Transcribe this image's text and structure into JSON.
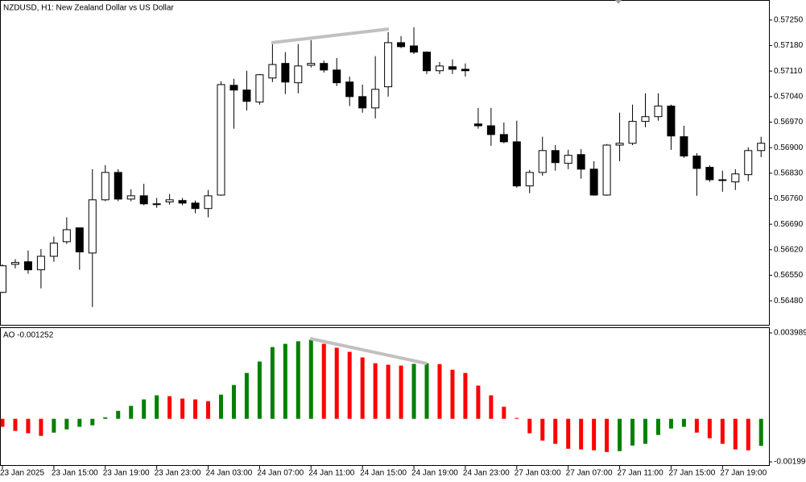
{
  "chart_data": [
    {
      "type": "candlestick",
      "title": "NZDUSD, H1:  New Zealand Dollar vs US Dollar",
      "categories": [
        "23 Jan 2025",
        null,
        null,
        null,
        "23 Jan 15:00",
        null,
        null,
        null,
        "23 Jan 19:00",
        null,
        null,
        null,
        "23 Jan 23:00",
        null,
        null,
        null,
        "24 Jan 03:00",
        null,
        null,
        null,
        "24 Jan 07:00",
        null,
        null,
        null,
        "24 Jan 11:00",
        null,
        null,
        null,
        "24 Jan 15:00",
        null,
        null,
        null,
        "24 Jan 19:00",
        null,
        null,
        null,
        "24 Jan 23:00",
        null,
        null,
        null,
        "27 Jan 03:00",
        null,
        null,
        null,
        "27 Jan 07:00",
        null,
        null,
        null,
        "27 Jan 11:00",
        null,
        null,
        null,
        "27 Jan 15:00",
        null,
        null,
        null,
        "27 Jan 19:00",
        null,
        null,
        null
      ],
      "open": [
        0.56503,
        0.5658,
        0.56587,
        0.56565,
        0.56602,
        0.56642,
        0.5668,
        0.56611,
        0.56757,
        0.56832,
        0.56759,
        0.56768,
        0.56746,
        0.56751,
        0.56755,
        0.56748,
        0.56733,
        0.5677,
        0.57071,
        0.57058,
        0.57025,
        0.57091,
        0.57131,
        0.57078,
        0.57126,
        0.57131,
        0.57113,
        0.5708,
        0.5704,
        0.57009,
        0.57067,
        0.57188,
        0.57179,
        0.57162,
        0.57111,
        0.57122,
        0.57115,
        0.56965,
        0.5696,
        0.56936,
        0.56916,
        0.56795,
        0.56832,
        0.56892,
        0.56857,
        0.56881,
        0.56841,
        0.5677,
        0.56907,
        0.56912,
        0.56972,
        0.56985,
        0.57014,
        0.5693,
        0.56877,
        0.56846,
        0.56812,
        0.56806,
        0.56826,
        0.56892
      ],
      "high": [
        0.5658,
        0.56594,
        0.56618,
        0.56622,
        0.56656,
        0.56709,
        0.5668,
        0.56841,
        0.56852,
        0.56841,
        0.56786,
        0.56801,
        0.56762,
        0.56773,
        0.56762,
        0.56755,
        0.56784,
        0.57082,
        0.57089,
        0.57111,
        0.57102,
        0.57184,
        0.57162,
        0.57184,
        0.57195,
        0.57139,
        0.57146,
        0.57095,
        0.57073,
        0.57151,
        0.57217,
        0.57206,
        0.5723,
        0.57164,
        0.57135,
        0.57142,
        0.57131,
        0.57009,
        0.57009,
        0.56969,
        0.56974,
        0.56839,
        0.5693,
        0.56907,
        0.56894,
        0.56896,
        0.56863,
        0.5691,
        0.56996,
        0.57018,
        0.57049,
        0.57049,
        0.57018,
        0.5696,
        0.56885,
        0.56852,
        0.56837,
        0.56841,
        0.56901,
        0.5693
      ],
      "low": [
        0.56501,
        0.56569,
        0.56554,
        0.56514,
        0.56587,
        0.56636,
        0.56565,
        0.56463,
        0.56753,
        0.56753,
        0.56753,
        0.56742,
        0.56735,
        0.56744,
        0.56742,
        0.5672,
        0.56709,
        0.56768,
        0.56952,
        0.57002,
        0.57018,
        0.5708,
        0.57047,
        0.57049,
        0.5712,
        0.57106,
        0.57069,
        0.57014,
        0.56996,
        0.5698,
        0.5704,
        0.57173,
        0.57157,
        0.57102,
        0.57102,
        0.57102,
        0.57095,
        0.56952,
        0.56905,
        0.56912,
        0.5679,
        0.56775,
        0.56823,
        0.56837,
        0.56841,
        0.56815,
        0.56768,
        0.56768,
        0.56863,
        0.56907,
        0.56956,
        0.56974,
        0.56894,
        0.56872,
        0.56768,
        0.56806,
        0.56779,
        0.56784,
        0.56808,
        0.56874
      ],
      "close": [
        0.56576,
        0.56585,
        0.56565,
        0.56602,
        0.56638,
        0.56675,
        0.56614,
        0.56757,
        0.56832,
        0.56759,
        0.56768,
        0.56746,
        0.56744,
        0.56757,
        0.56748,
        0.56733,
        0.56768,
        0.57073,
        0.57058,
        0.57027,
        0.571,
        0.57128,
        0.5708,
        0.57124,
        0.57131,
        0.57113,
        0.57078,
        0.5704,
        0.57009,
        0.5706,
        0.57188,
        0.57177,
        0.57162,
        0.57111,
        0.57124,
        0.57115,
        0.57111,
        0.5696,
        0.56936,
        0.56916,
        0.56795,
        0.56832,
        0.56892,
        0.56859,
        0.56879,
        0.56841,
        0.5677,
        0.56907,
        0.56912,
        0.56972,
        0.56985,
        0.57014,
        0.56932,
        0.56877,
        0.56843,
        0.56812,
        0.5681,
        0.56828,
        0.56892,
        0.56912
      ],
      "ylim": [
        0.56414,
        0.57305
      ],
      "yticks": [
        {
          "value": 0.5725,
          "label": "0.57250"
        },
        {
          "value": 0.5718,
          "label": "0.57180"
        },
        {
          "value": 0.5711,
          "label": "0.57110"
        },
        {
          "value": 0.5704,
          "label": "0.57040"
        },
        {
          "value": 0.5697,
          "label": "0.56970"
        },
        {
          "value": 0.569,
          "label": "0.56900"
        },
        {
          "value": 0.5683,
          "label": "0.56830"
        },
        {
          "value": 0.5676,
          "label": "0.56760"
        },
        {
          "value": 0.5669,
          "label": "0.56690"
        },
        {
          "value": 0.5662,
          "label": "0.56620"
        },
        {
          "value": 0.5655,
          "label": "0.56550"
        },
        {
          "value": 0.5648,
          "label": "0.56480"
        }
      ],
      "up_color": "#ffffff",
      "down_color": "#000000",
      "line_color": "#000000"
    },
    {
      "type": "bar",
      "title": "AO -0.001252",
      "values": [
        -0.00037,
        -0.00056,
        -0.00067,
        -0.00079,
        -0.00064,
        -0.00049,
        -0.00037,
        -0.0003,
        7e-05,
        0.00037,
        0.0006,
        0.0009,
        0.00109,
        0.00105,
        0.00094,
        0.0009,
        0.00082,
        0.00112,
        0.00157,
        0.00213,
        0.00266,
        0.00333,
        0.00348,
        0.0036,
        0.00367,
        0.00348,
        0.0033,
        0.00311,
        0.00285,
        0.00258,
        0.00251,
        0.00247,
        0.00255,
        0.00258,
        0.00254,
        0.00228,
        0.00213,
        0.00154,
        0.00109,
        0.00056,
        4e-05,
        -0.00067,
        -0.00101,
        -0.00116,
        -0.00139,
        -0.00142,
        -0.00146,
        -0.00154,
        -0.0015,
        -0.00124,
        -0.00116,
        -0.00075,
        -0.00045,
        -0.00037,
        -0.00064,
        -0.0009,
        -0.00116,
        -0.00142,
        -0.00146,
        -0.001252
      ],
      "ylim": [
        -0.001997,
        0.003989
      ],
      "yticks": [
        0.003989,
        -0.001997
      ],
      "up_color": "#008000",
      "down_color": "#ff0000"
    }
  ]
}
